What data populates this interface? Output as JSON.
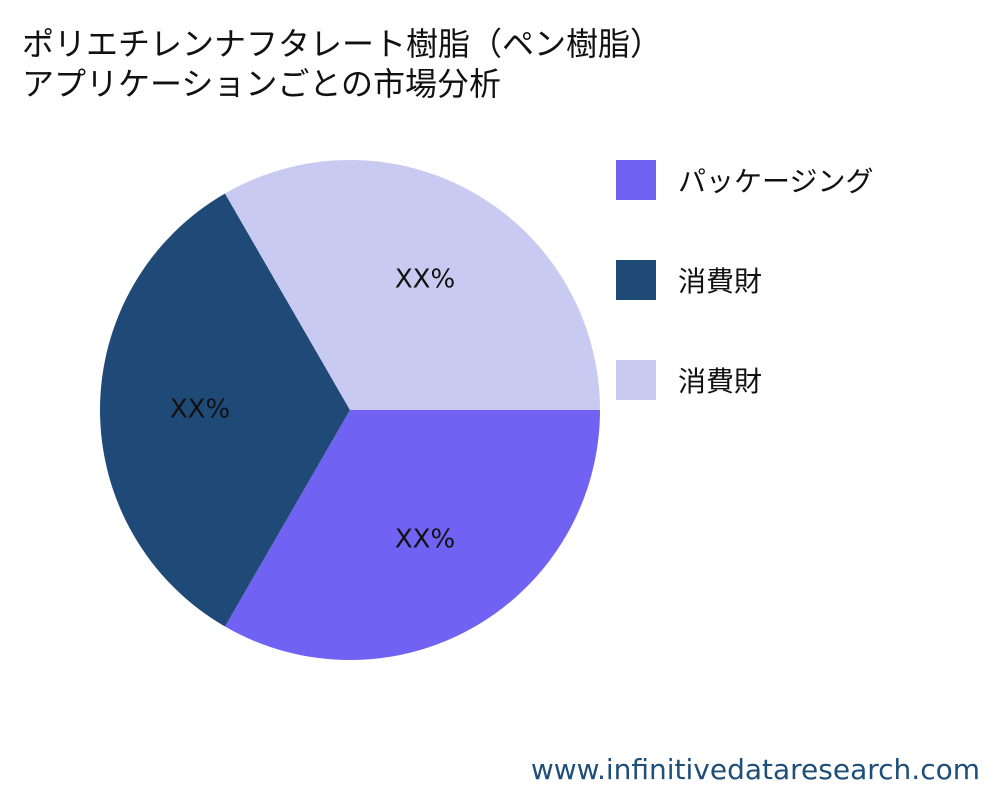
{
  "title_lines": [
    "ポリエチレンナフタレート樹脂（ペン樹脂）",
    "アプリケーションごとの市場分析"
  ],
  "chart_data": {
    "type": "pie",
    "title": "ポリエチレンナフタレート樹脂（ペン樹脂）アプリケーションごとの市場分析",
    "slices": [
      {
        "name": "パッケージング",
        "value": 33.33,
        "label": "XX%",
        "color": "#7063f3"
      },
      {
        "name": "消費財",
        "value": 33.33,
        "label": "XX%",
        "color": "#1f4a78"
      },
      {
        "name": "消費財",
        "value": 33.33,
        "label": "XX%",
        "color": "#c9caf1"
      }
    ],
    "legend_position": "right"
  },
  "legend": [
    {
      "label": "パッケージング",
      "color": "#7063f3"
    },
    {
      "label": "消費財",
      "color": "#1f4a78"
    },
    {
      "label": "消費財",
      "color": "#c9caf1"
    }
  ],
  "watermark": "www.infinitivedataresearch.com"
}
